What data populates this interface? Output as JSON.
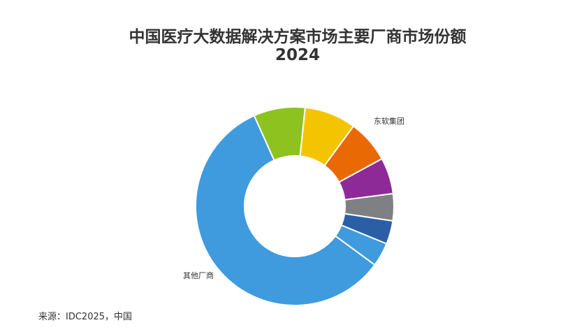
{
  "chart_data": {
    "type": "pie",
    "subtype": "donut",
    "title": "中国医疗大数据解决方案市场主要厂商市场份额",
    "subtitle": "2024",
    "slices": [
      {
        "value": 8.4,
        "color": "#8dc21f"
      },
      {
        "value": 8.4,
        "color": "#f5c400"
      },
      {
        "value": 7.0,
        "color": "#e96a05",
        "label": "东软集团"
      },
      {
        "value": 5.9,
        "color": "#8e2a97"
      },
      {
        "value": 4.4,
        "color": "#7f8083"
      },
      {
        "value": 3.8,
        "color": "#2a5fa5"
      },
      {
        "value": 3.9,
        "color": "#3f9bde"
      },
      {
        "value": 58.2,
        "color": "#3f9bde",
        "label": "其他厂商"
      }
    ],
    "legend": "none",
    "source": "来源：IDC2025，中国"
  }
}
